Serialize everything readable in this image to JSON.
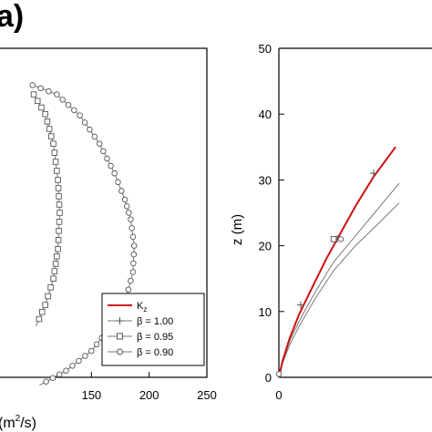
{
  "panel_label": "a)",
  "chart_data": [
    {
      "type": "line",
      "xlabel": "(m²/s)",
      "xlabel_parts": [
        "(m",
        "2",
        "/s)"
      ],
      "x_ticks": [
        150,
        200,
        250
      ],
      "x_tick_labels": [
        "150",
        "200",
        "250"
      ],
      "xlim": [
        100,
        250
      ],
      "ylim": [
        0,
        50
      ],
      "grid": false,
      "legend_position": "bottom-right",
      "legend": [
        {
          "label": "K",
          "sub": "z",
          "color": "#d01010",
          "marker": "none"
        },
        {
          "label": "β = 1.00",
          "color": "#777777",
          "marker": "plus"
        },
        {
          "label": "β = 0.95",
          "color": "#777777",
          "marker": "square"
        },
        {
          "label": "β = 0.90",
          "color": "#777777",
          "marker": "circle"
        }
      ],
      "series": [
        {
          "marker": "square",
          "color": "#777777",
          "points": [
            [
              100,
              43.0
            ],
            [
              110,
              40.0
            ],
            [
              117,
              35.5
            ],
            [
              121,
              30.0
            ],
            [
              122.5,
              25.0
            ],
            [
              121,
              19.5
            ],
            [
              117,
              15.0
            ],
            [
              110,
              11.0
            ],
            [
              102,
              7.8
            ]
          ]
        },
        {
          "marker": "circle",
          "color": "#777777",
          "points": [
            [
              99,
              44.4
            ],
            [
              120,
              43.0
            ],
            [
              140,
              39.8
            ],
            [
              157,
              35.5
            ],
            [
              170,
              31.0
            ],
            [
              179,
              27.0
            ],
            [
              184,
              24.0
            ],
            [
              187,
              20.0
            ],
            [
              186,
              16.0
            ],
            [
              180,
              12.0
            ],
            [
              168,
              8.0
            ],
            [
              150,
              4.0
            ],
            [
              128,
              1.0
            ],
            [
              105,
              -1.2
            ]
          ]
        }
      ]
    },
    {
      "type": "line",
      "xlabel": "",
      "ylabel": "z (m)",
      "y_ticks": [
        0,
        10,
        20,
        30,
        40,
        50
      ],
      "y_tick_labels": [
        "0",
        "10",
        "20",
        "30",
        "40",
        "50"
      ],
      "x_ticks": [
        0
      ],
      "x_tick_labels": [
        "0"
      ],
      "xlim": [
        0,
        50
      ],
      "ylim": [
        0,
        50
      ],
      "grid": false,
      "series": [
        {
          "name": "K_z",
          "color": "#d01010",
          "marker": "none",
          "points": [
            [
              0,
              0
            ],
            [
              1,
              2.5
            ],
            [
              3,
              6
            ],
            [
              5.5,
              9.5
            ],
            [
              9,
              13.5
            ],
            [
              13,
              18
            ],
            [
              17,
              22
            ],
            [
              21,
              26
            ],
            [
              26,
              30.5
            ],
            [
              32,
              35
            ]
          ]
        },
        {
          "name": "β = 1.00",
          "color": "#777777",
          "marker": "plus",
          "points": [
            [
              0,
              0
            ],
            [
              1,
              2.5
            ],
            [
              3,
              6
            ],
            [
              5.5,
              9.5
            ],
            [
              9,
              13.5
            ],
            [
              13,
              18
            ],
            [
              17,
              22
            ],
            [
              21,
              26
            ],
            [
              26,
              30.5
            ],
            [
              32,
              35
            ]
          ]
        },
        {
          "name": "β = 0.95",
          "color": "#777777",
          "marker": "square",
          "points": [
            [
              0,
              0
            ],
            [
              1,
              2.3
            ],
            [
              3,
              5.6
            ],
            [
              6,
              9
            ],
            [
              10,
              13
            ],
            [
              15,
              17.5
            ],
            [
              21,
              21.5
            ],
            [
              27,
              25.5
            ],
            [
              33,
              29.5
            ]
          ]
        },
        {
          "name": "β = 0.90",
          "color": "#777777",
          "marker": "circle",
          "points": [
            [
              0,
              0
            ],
            [
              1,
              2.1
            ],
            [
              3,
              5
            ],
            [
              6,
              8.2
            ],
            [
              10,
              12
            ],
            [
              15,
              16.2
            ],
            [
              21,
              20
            ],
            [
              27,
              23.2
            ],
            [
              33,
              26.5
            ]
          ]
        }
      ],
      "markers": [
        {
          "series": "β = 1.00",
          "points": [
            [
              6,
              11
            ],
            [
              16,
              21
            ],
            [
              26,
              31
            ]
          ]
        },
        {
          "series": "β = 0.95",
          "points": [
            [
              15,
              21
            ]
          ]
        },
        {
          "series": "β = 0.90",
          "points": [
            [
              0,
              0.5
            ],
            [
              17,
              21
            ]
          ]
        }
      ]
    }
  ]
}
